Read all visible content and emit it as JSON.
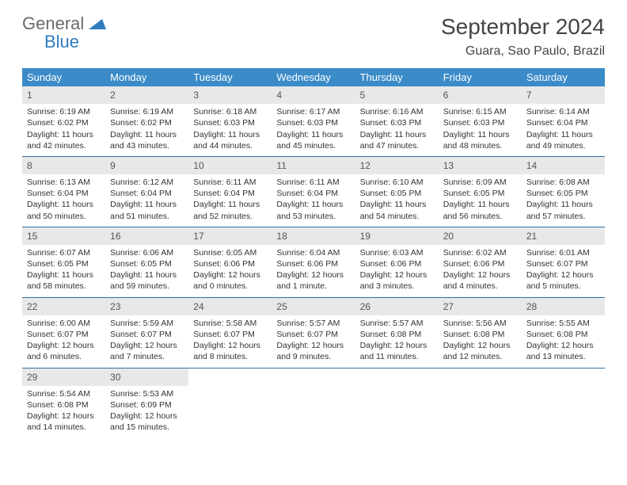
{
  "logo": {
    "word1": "General",
    "word2": "Blue"
  },
  "title": "September 2024",
  "location": "Guara, Sao Paulo, Brazil",
  "colors": {
    "header_bg": "#3b8bc9",
    "header_text": "#ffffff",
    "daynum_bg": "#e8e8e8",
    "row_border": "#2f6fa6",
    "logo_gray": "#6b6b6b",
    "logo_blue": "#2f7bbf"
  },
  "weekdays": [
    "Sunday",
    "Monday",
    "Tuesday",
    "Wednesday",
    "Thursday",
    "Friday",
    "Saturday"
  ],
  "weeks": [
    [
      {
        "n": "1",
        "sr": "Sunrise: 6:19 AM",
        "ss": "Sunset: 6:02 PM",
        "d1": "Daylight: 11 hours",
        "d2": "and 42 minutes."
      },
      {
        "n": "2",
        "sr": "Sunrise: 6:19 AM",
        "ss": "Sunset: 6:02 PM",
        "d1": "Daylight: 11 hours",
        "d2": "and 43 minutes."
      },
      {
        "n": "3",
        "sr": "Sunrise: 6:18 AM",
        "ss": "Sunset: 6:03 PM",
        "d1": "Daylight: 11 hours",
        "d2": "and 44 minutes."
      },
      {
        "n": "4",
        "sr": "Sunrise: 6:17 AM",
        "ss": "Sunset: 6:03 PM",
        "d1": "Daylight: 11 hours",
        "d2": "and 45 minutes."
      },
      {
        "n": "5",
        "sr": "Sunrise: 6:16 AM",
        "ss": "Sunset: 6:03 PM",
        "d1": "Daylight: 11 hours",
        "d2": "and 47 minutes."
      },
      {
        "n": "6",
        "sr": "Sunrise: 6:15 AM",
        "ss": "Sunset: 6:03 PM",
        "d1": "Daylight: 11 hours",
        "d2": "and 48 minutes."
      },
      {
        "n": "7",
        "sr": "Sunrise: 6:14 AM",
        "ss": "Sunset: 6:04 PM",
        "d1": "Daylight: 11 hours",
        "d2": "and 49 minutes."
      }
    ],
    [
      {
        "n": "8",
        "sr": "Sunrise: 6:13 AM",
        "ss": "Sunset: 6:04 PM",
        "d1": "Daylight: 11 hours",
        "d2": "and 50 minutes."
      },
      {
        "n": "9",
        "sr": "Sunrise: 6:12 AM",
        "ss": "Sunset: 6:04 PM",
        "d1": "Daylight: 11 hours",
        "d2": "and 51 minutes."
      },
      {
        "n": "10",
        "sr": "Sunrise: 6:11 AM",
        "ss": "Sunset: 6:04 PM",
        "d1": "Daylight: 11 hours",
        "d2": "and 52 minutes."
      },
      {
        "n": "11",
        "sr": "Sunrise: 6:11 AM",
        "ss": "Sunset: 6:04 PM",
        "d1": "Daylight: 11 hours",
        "d2": "and 53 minutes."
      },
      {
        "n": "12",
        "sr": "Sunrise: 6:10 AM",
        "ss": "Sunset: 6:05 PM",
        "d1": "Daylight: 11 hours",
        "d2": "and 54 minutes."
      },
      {
        "n": "13",
        "sr": "Sunrise: 6:09 AM",
        "ss": "Sunset: 6:05 PM",
        "d1": "Daylight: 11 hours",
        "d2": "and 56 minutes."
      },
      {
        "n": "14",
        "sr": "Sunrise: 6:08 AM",
        "ss": "Sunset: 6:05 PM",
        "d1": "Daylight: 11 hours",
        "d2": "and 57 minutes."
      }
    ],
    [
      {
        "n": "15",
        "sr": "Sunrise: 6:07 AM",
        "ss": "Sunset: 6:05 PM",
        "d1": "Daylight: 11 hours",
        "d2": "and 58 minutes."
      },
      {
        "n": "16",
        "sr": "Sunrise: 6:06 AM",
        "ss": "Sunset: 6:05 PM",
        "d1": "Daylight: 11 hours",
        "d2": "and 59 minutes."
      },
      {
        "n": "17",
        "sr": "Sunrise: 6:05 AM",
        "ss": "Sunset: 6:06 PM",
        "d1": "Daylight: 12 hours",
        "d2": "and 0 minutes."
      },
      {
        "n": "18",
        "sr": "Sunrise: 6:04 AM",
        "ss": "Sunset: 6:06 PM",
        "d1": "Daylight: 12 hours",
        "d2": "and 1 minute."
      },
      {
        "n": "19",
        "sr": "Sunrise: 6:03 AM",
        "ss": "Sunset: 6:06 PM",
        "d1": "Daylight: 12 hours",
        "d2": "and 3 minutes."
      },
      {
        "n": "20",
        "sr": "Sunrise: 6:02 AM",
        "ss": "Sunset: 6:06 PM",
        "d1": "Daylight: 12 hours",
        "d2": "and 4 minutes."
      },
      {
        "n": "21",
        "sr": "Sunrise: 6:01 AM",
        "ss": "Sunset: 6:07 PM",
        "d1": "Daylight: 12 hours",
        "d2": "and 5 minutes."
      }
    ],
    [
      {
        "n": "22",
        "sr": "Sunrise: 6:00 AM",
        "ss": "Sunset: 6:07 PM",
        "d1": "Daylight: 12 hours",
        "d2": "and 6 minutes."
      },
      {
        "n": "23",
        "sr": "Sunrise: 5:59 AM",
        "ss": "Sunset: 6:07 PM",
        "d1": "Daylight: 12 hours",
        "d2": "and 7 minutes."
      },
      {
        "n": "24",
        "sr": "Sunrise: 5:58 AM",
        "ss": "Sunset: 6:07 PM",
        "d1": "Daylight: 12 hours",
        "d2": "and 8 minutes."
      },
      {
        "n": "25",
        "sr": "Sunrise: 5:57 AM",
        "ss": "Sunset: 6:07 PM",
        "d1": "Daylight: 12 hours",
        "d2": "and 9 minutes."
      },
      {
        "n": "26",
        "sr": "Sunrise: 5:57 AM",
        "ss": "Sunset: 6:08 PM",
        "d1": "Daylight: 12 hours",
        "d2": "and 11 minutes."
      },
      {
        "n": "27",
        "sr": "Sunrise: 5:56 AM",
        "ss": "Sunset: 6:08 PM",
        "d1": "Daylight: 12 hours",
        "d2": "and 12 minutes."
      },
      {
        "n": "28",
        "sr": "Sunrise: 5:55 AM",
        "ss": "Sunset: 6:08 PM",
        "d1": "Daylight: 12 hours",
        "d2": "and 13 minutes."
      }
    ],
    [
      {
        "n": "29",
        "sr": "Sunrise: 5:54 AM",
        "ss": "Sunset: 6:08 PM",
        "d1": "Daylight: 12 hours",
        "d2": "and 14 minutes."
      },
      {
        "n": "30",
        "sr": "Sunrise: 5:53 AM",
        "ss": "Sunset: 6:09 PM",
        "d1": "Daylight: 12 hours",
        "d2": "and 15 minutes."
      },
      {
        "empty": true
      },
      {
        "empty": true
      },
      {
        "empty": true
      },
      {
        "empty": true
      },
      {
        "empty": true
      }
    ]
  ]
}
